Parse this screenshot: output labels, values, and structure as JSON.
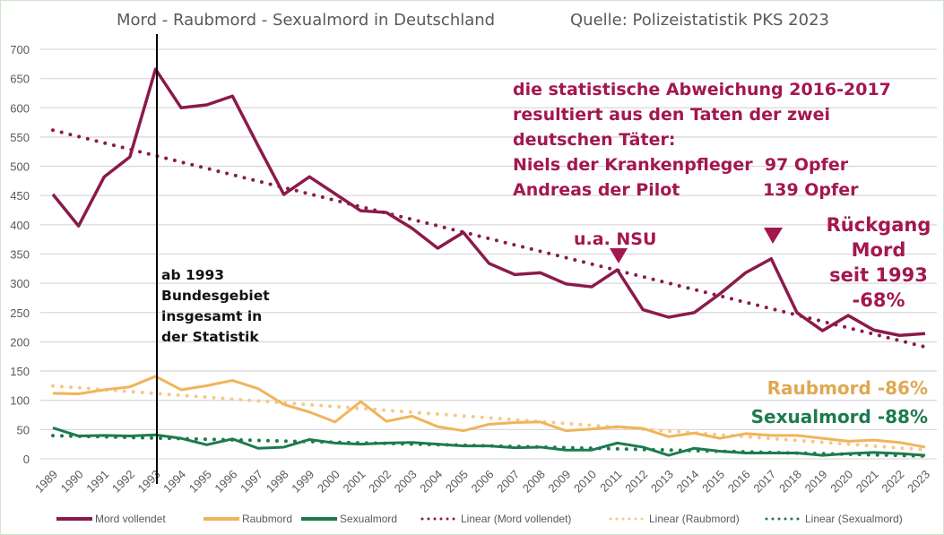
{
  "chart_data": {
    "type": "line",
    "title": "Mord - Raubmord - Sexualmord in Deutschland",
    "source": "Quelle: Polizeistatistik PKS 2023",
    "ylim": [
      0,
      700
    ],
    "yticks": [
      0,
      50,
      100,
      150,
      200,
      250,
      300,
      350,
      400,
      450,
      500,
      550,
      600,
      650,
      700
    ],
    "grid": true,
    "legend_position": "bottom",
    "categories": [
      "1989",
      "1990",
      "1991",
      "1992",
      "1993",
      "1994",
      "1995",
      "1996",
      "1997",
      "1998",
      "1999",
      "2000",
      "2001",
      "2002",
      "2003",
      "2004",
      "2005",
      "2006",
      "2007",
      "2008",
      "2009",
      "2010",
      "2011",
      "2012",
      "2013",
      "2014",
      "2015",
      "2016",
      "2017",
      "2018",
      "2019",
      "2020",
      "2021",
      "2022",
      "2023"
    ],
    "series": [
      {
        "name": "Mord vollendet",
        "color": "#8b1a4a",
        "values": [
          452,
          398,
          482,
          516,
          666,
          600,
          605,
          620,
          535,
          452,
          482,
          453,
          424,
          421,
          394,
          360,
          387,
          334,
          315,
          318,
          299,
          294,
          323,
          255,
          242,
          250,
          282,
          318,
          342,
          250,
          219,
          245,
          220,
          211,
          214
        ]
      },
      {
        "name": "Raubmord",
        "color": "#f0b45a",
        "values": [
          112,
          111,
          118,
          123,
          141,
          118,
          125,
          134,
          120,
          93,
          80,
          63,
          98,
          64,
          73,
          55,
          48,
          59,
          62,
          63,
          48,
          51,
          55,
          52,
          38,
          44,
          35,
          43,
          40,
          40,
          35,
          30,
          32,
          28,
          20
        ]
      },
      {
        "name": "Sexualmord",
        "color": "#1e7a4f",
        "values": [
          53,
          39,
          40,
          39,
          41,
          35,
          24,
          34,
          18,
          20,
          33,
          27,
          25,
          27,
          28,
          25,
          22,
          22,
          19,
          20,
          15,
          15,
          27,
          20,
          6,
          18,
          13,
          10,
          10,
          10,
          6,
          9,
          11,
          9,
          6
        ]
      }
    ],
    "trendlines": [
      {
        "name": "Linear (Mord vollendet)",
        "of": 0,
        "color": "#8b1a4a"
      },
      {
        "name": "Linear (Raubmord)",
        "of": 1,
        "color": "#f5c98a"
      },
      {
        "name": "Linear (Sexualmord)",
        "of": 2,
        "color": "#1e7a4f"
      }
    ],
    "annotations": {
      "statistics_note": [
        "die statistische Abweichung 2016-2017",
        "resultiert aus den Taten der zwei",
        "deutschen Täter:",
        "Niels der Krankenpfleger  97 Opfer",
        "Andreas der Pilot              139 Opfer"
      ],
      "nsu": "u.a. NSU",
      "decline_mord": [
        "Rückgang",
        "Mord",
        "seit 1993",
        "-68%"
      ],
      "decline_raubmord": "Raubmord -86%",
      "decline_sexualmord": "Sexualmord -88%",
      "marker_1993": [
        "ab 1993",
        "Bundesgebiet",
        "insgesamt in",
        "der Statistik"
      ]
    }
  }
}
